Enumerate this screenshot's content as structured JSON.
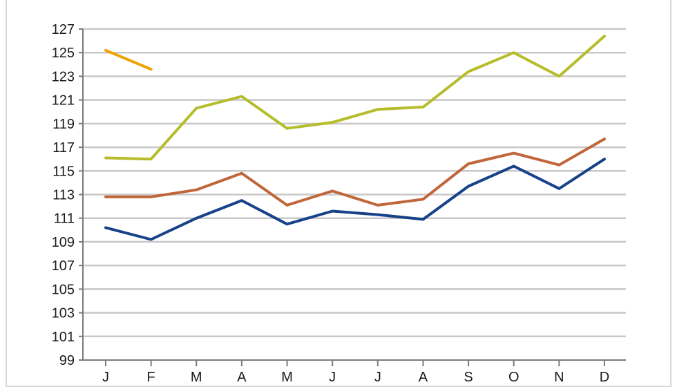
{
  "chart_data": {
    "type": "line",
    "categories": [
      "J",
      "F",
      "M",
      "A",
      "M",
      "J",
      "J",
      "A",
      "S",
      "O",
      "N",
      "D"
    ],
    "ylim": [
      99,
      127
    ],
    "yticks": [
      99,
      101,
      103,
      105,
      107,
      109,
      111,
      113,
      115,
      117,
      119,
      121,
      123,
      125,
      127
    ],
    "grid": true,
    "title": "",
    "xlabel": "",
    "ylabel": "",
    "series": [
      {
        "color": "#f0a202",
        "values": [
          125.2,
          123.6,
          null,
          null,
          null,
          null,
          null,
          null,
          null,
          null,
          null,
          null
        ]
      },
      {
        "color": "#b5bd2a",
        "values": [
          116.1,
          116.0,
          120.3,
          121.3,
          118.6,
          119.1,
          120.2,
          120.4,
          123.4,
          125.0,
          123.0,
          126.4
        ]
      },
      {
        "color": "#c0663a",
        "values": [
          112.8,
          112.8,
          113.4,
          114.8,
          112.1,
          113.3,
          112.1,
          112.6,
          115.6,
          116.5,
          115.5,
          117.7
        ]
      },
      {
        "color": "#17428a",
        "values": [
          110.2,
          109.2,
          111.0,
          112.5,
          110.5,
          111.6,
          111.3,
          110.9,
          113.7,
          115.4,
          113.5,
          116.0
        ]
      }
    ]
  }
}
